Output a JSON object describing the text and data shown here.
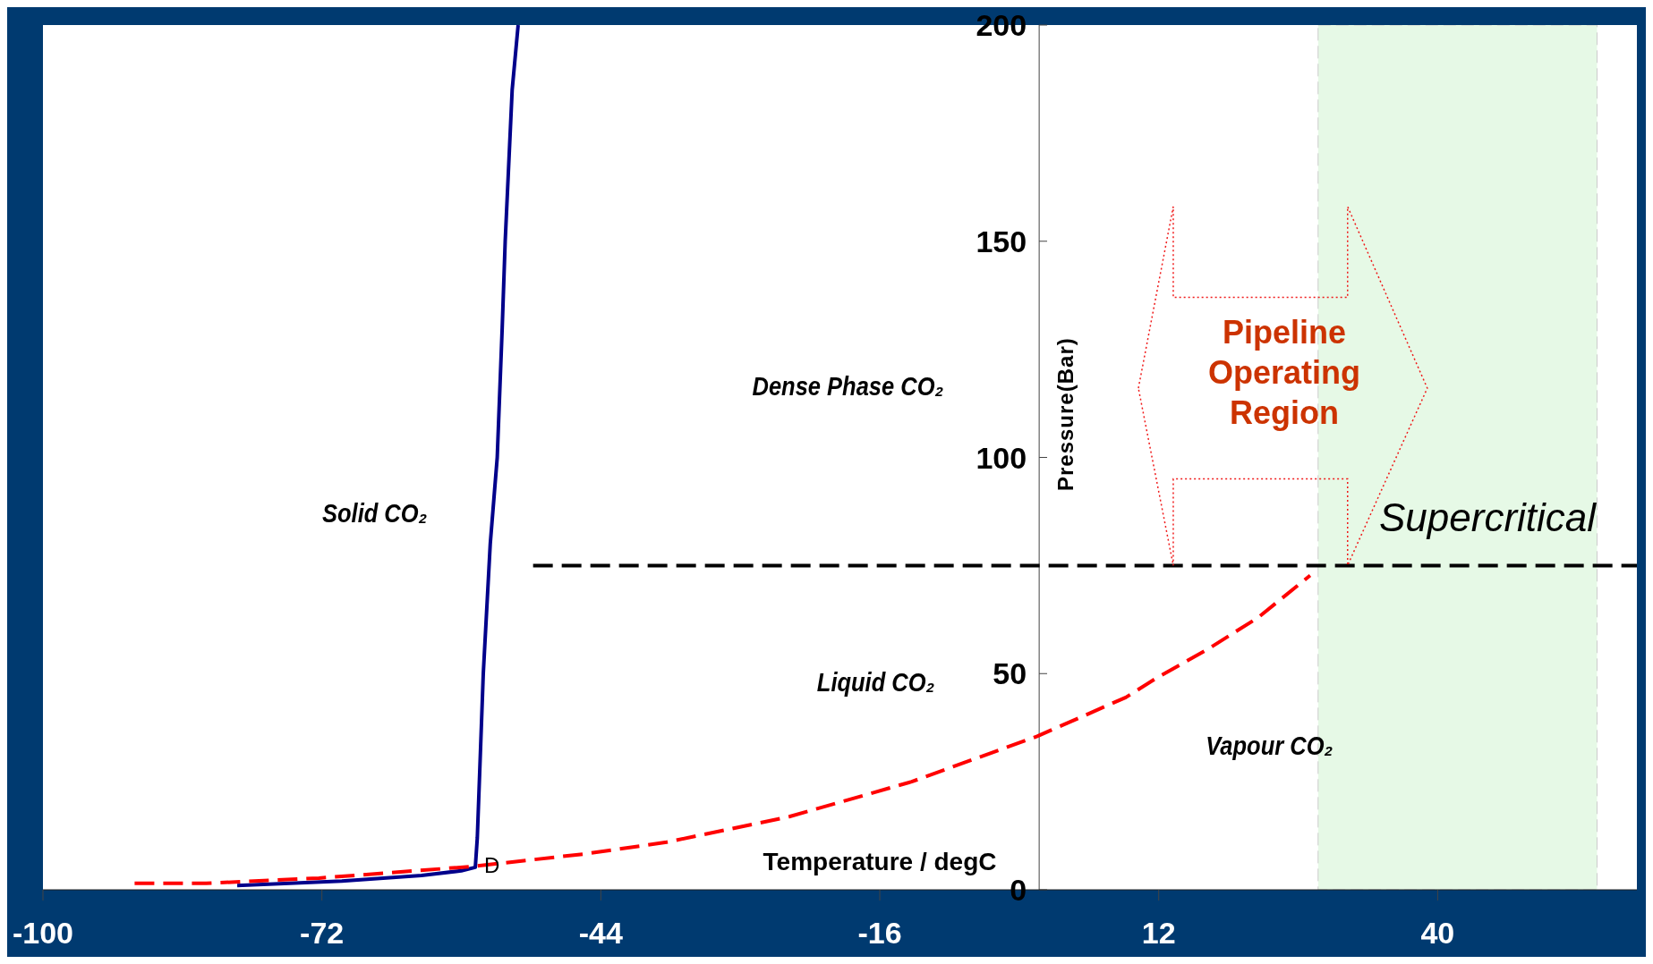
{
  "chart_data": {
    "type": "line",
    "xlabel": "Temperature / degC",
    "ylabel": "Pressure(Bar)",
    "xlim": [
      -100,
      60
    ],
    "xticks": [
      -100,
      -72,
      -44,
      -16,
      12,
      40
    ],
    "ylim": [
      0,
      200
    ],
    "yticks": [
      0,
      50,
      100,
      150,
      200
    ],
    "grid": false,
    "legend": false,
    "marker": "none",
    "series": [
      {
        "color": "#00008b",
        "line_style": "solid",
        "x": [
          -80.5,
          -70,
          -62,
          -58,
          -56.6,
          -56.4,
          -55.8,
          -55.1,
          -54.4,
          -53.9,
          -53.6,
          -52.9,
          -52.3
        ],
        "values": [
          1,
          2,
          3.3,
          4.4,
          5.2,
          12,
          50,
          80,
          100,
          130,
          150,
          185,
          200
        ]
      },
      {
        "color": "#ff0000",
        "line_style": "dashed",
        "x": [
          -90.8,
          -83.6,
          -72.3,
          -56.9,
          -45.6,
          -37.4,
          -25.1,
          -12.8,
          -0.2,
          8.7,
          11.8,
          16.9,
          22,
          27.2
        ],
        "values": [
          1.5,
          1.5,
          2.7,
          5.4,
          8.3,
          11,
          16.9,
          25,
          35.5,
          44.5,
          49,
          55.6,
          63,
          72.7
        ]
      },
      {
        "color": "#000000",
        "line_style": "dashed",
        "x": [
          -50.8,
          60
        ],
        "values": [
          75,
          75
        ]
      }
    ],
    "bands": [
      {
        "axis": "x",
        "from": 28,
        "to": 56,
        "color": "#e6f9e6"
      }
    ],
    "annotations": [
      "Solid CO₂",
      "Dense Phase CO₂",
      "Liquid CO₂",
      "Vapour CO₂",
      {
        "text": "D",
        "x": -56.6,
        "y": 5.2
      },
      "Pipeline Operating Region",
      "Supercritical"
    ]
  }
}
